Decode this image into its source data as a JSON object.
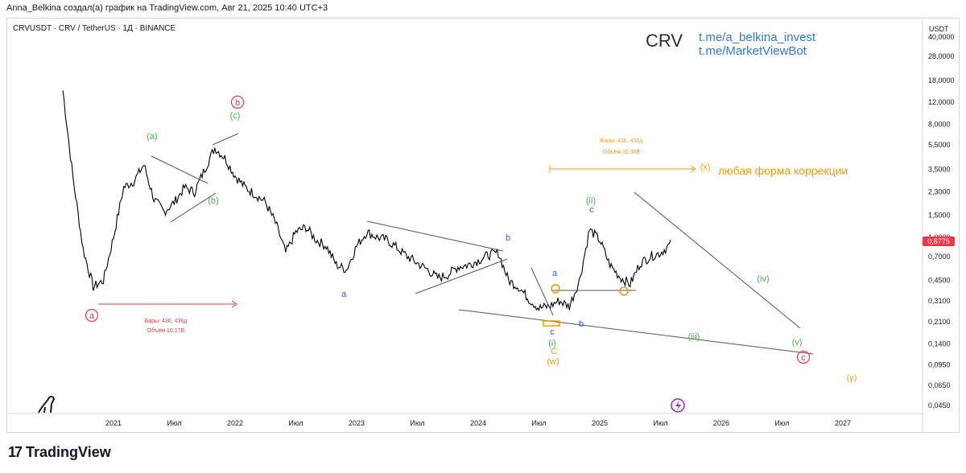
{
  "header": {
    "attribution": "Anna_Belkina создал(а) график на TradingView.com, Авг 21, 2025 10:40 UTC+3",
    "symbol_line": "CRVUSDT · CRV / TetherUS · 1Д · BINANCE"
  },
  "overlay": {
    "ticker": "CRV",
    "link1": "t.me/a_belkina_invest",
    "link2": "t.me/MarketViewBot"
  },
  "footer": {
    "brand": "TradingView",
    "brand_mark": "17"
  },
  "colors": {
    "candles": "#000000",
    "red": "#f23645",
    "green": "#4caf50",
    "blue": "#2962ff",
    "orange": "#ff9800",
    "yellow": "#f5a623",
    "price_badge": "#f23645",
    "lines": "#555555"
  },
  "chart_data": {
    "type": "line",
    "currency_label": "USDT",
    "y_scale": "log",
    "ylim": [
      0.04,
      40
    ],
    "y_ticks": [
      "0,0450",
      "0,0650",
      "0,0950",
      "0,1400",
      "0,2100",
      "0,3100",
      "0,4500",
      "0,7000",
      "1,0000",
      "1,5000",
      "2,3000",
      "3,5000",
      "5,5000",
      "8,0000",
      "12,0000",
      "18,0000",
      "28,0000",
      "40,0000"
    ],
    "x_ticks": [
      "2021",
      "Июл",
      "2022",
      "Июл",
      "2023",
      "Июл",
      "2024",
      "Июл",
      "2025",
      "Июл",
      "2026",
      "Июл",
      "2027"
    ],
    "last_price": "0,8775",
    "series": [
      {
        "x": [
          "2020-08",
          "2020-09",
          "2020-10",
          "2020-11",
          "2020-12",
          "2021-01",
          "2021-02",
          "2021-03",
          "2021-04",
          "2021-05",
          "2021-06",
          "2021-07",
          "2021-08",
          "2021-09",
          "2021-10",
          "2021-11",
          "2021-12",
          "2022-01",
          "2022-02",
          "2022-03",
          "2022-04",
          "2022-05",
          "2022-06",
          "2022-07",
          "2022-08",
          "2022-09",
          "2022-10",
          "2022-11",
          "2022-12",
          "2023-01",
          "2023-02",
          "2023-03",
          "2023-04",
          "2023-05",
          "2023-06",
          "2023-07",
          "2023-08",
          "2023-09",
          "2023-10",
          "2023-11",
          "2023-12",
          "2024-01",
          "2024-02",
          "2024-03",
          "2024-04",
          "2024-05",
          "2024-06",
          "2024-07",
          "2024-08",
          "2024-09",
          "2024-10",
          "2024-11",
          "2024-12",
          "2025-01",
          "2025-02",
          "2025-03",
          "2025-04",
          "2025-05",
          "2025-06",
          "2025-07",
          "2025-08"
        ],
        "values": [
          15.0,
          3.0,
          0.8,
          0.4,
          0.45,
          1.0,
          2.5,
          2.8,
          3.8,
          2.0,
          1.6,
          1.9,
          2.5,
          2.3,
          3.5,
          5.2,
          4.3,
          3.1,
          2.5,
          2.2,
          1.9,
          1.3,
          0.75,
          1.1,
          1.2,
          0.95,
          0.85,
          0.6,
          0.55,
          0.85,
          1.1,
          1.0,
          0.95,
          0.82,
          0.7,
          0.62,
          0.55,
          0.47,
          0.5,
          0.58,
          0.6,
          0.65,
          0.72,
          0.75,
          0.45,
          0.4,
          0.32,
          0.27,
          0.28,
          0.31,
          0.28,
          0.45,
          1.15,
          0.95,
          0.6,
          0.48,
          0.42,
          0.62,
          0.7,
          0.75,
          0.8775
        ]
      }
    ]
  },
  "annotations": {
    "wave_labels": [
      {
        "text": "a",
        "color": "red",
        "circle": true
      },
      {
        "text": "b",
        "color": "red",
        "circle": true
      },
      {
        "text": "(c)",
        "color": "green"
      },
      {
        "text": "(a)",
        "color": "green"
      },
      {
        "text": "(b)",
        "color": "green"
      },
      {
        "text": "a",
        "color": "blue"
      },
      {
        "text": "b",
        "color": "blue"
      },
      {
        "text": "a",
        "color": "blue"
      },
      {
        "text": "c",
        "color": "blue"
      },
      {
        "text": "b",
        "color": "blue"
      },
      {
        "text": "c",
        "color": "blue"
      },
      {
        "text": "(ii)",
        "color": "green"
      },
      {
        "text": "(i)",
        "color": "green"
      },
      {
        "text": "C",
        "color": "orange"
      },
      {
        "text": "(w)",
        "color": "orange"
      },
      {
        "text": "(x)",
        "color": "orange"
      },
      {
        "text": "(iii)",
        "color": "green"
      },
      {
        "text": "(iv)",
        "color": "green"
      },
      {
        "text": "(v)",
        "color": "green"
      },
      {
        "text": "c",
        "color": "red",
        "circle": true
      },
      {
        "text": "(y)",
        "color": "yellow"
      }
    ],
    "range1_bars": "Бары: 436, 436д",
    "range1_volume": "Объём 10,17B",
    "range2_bars": "Бары: 436, 436д",
    "range2_volume": "Объём 26,38B",
    "correction_text": "любая форма коррекции"
  }
}
